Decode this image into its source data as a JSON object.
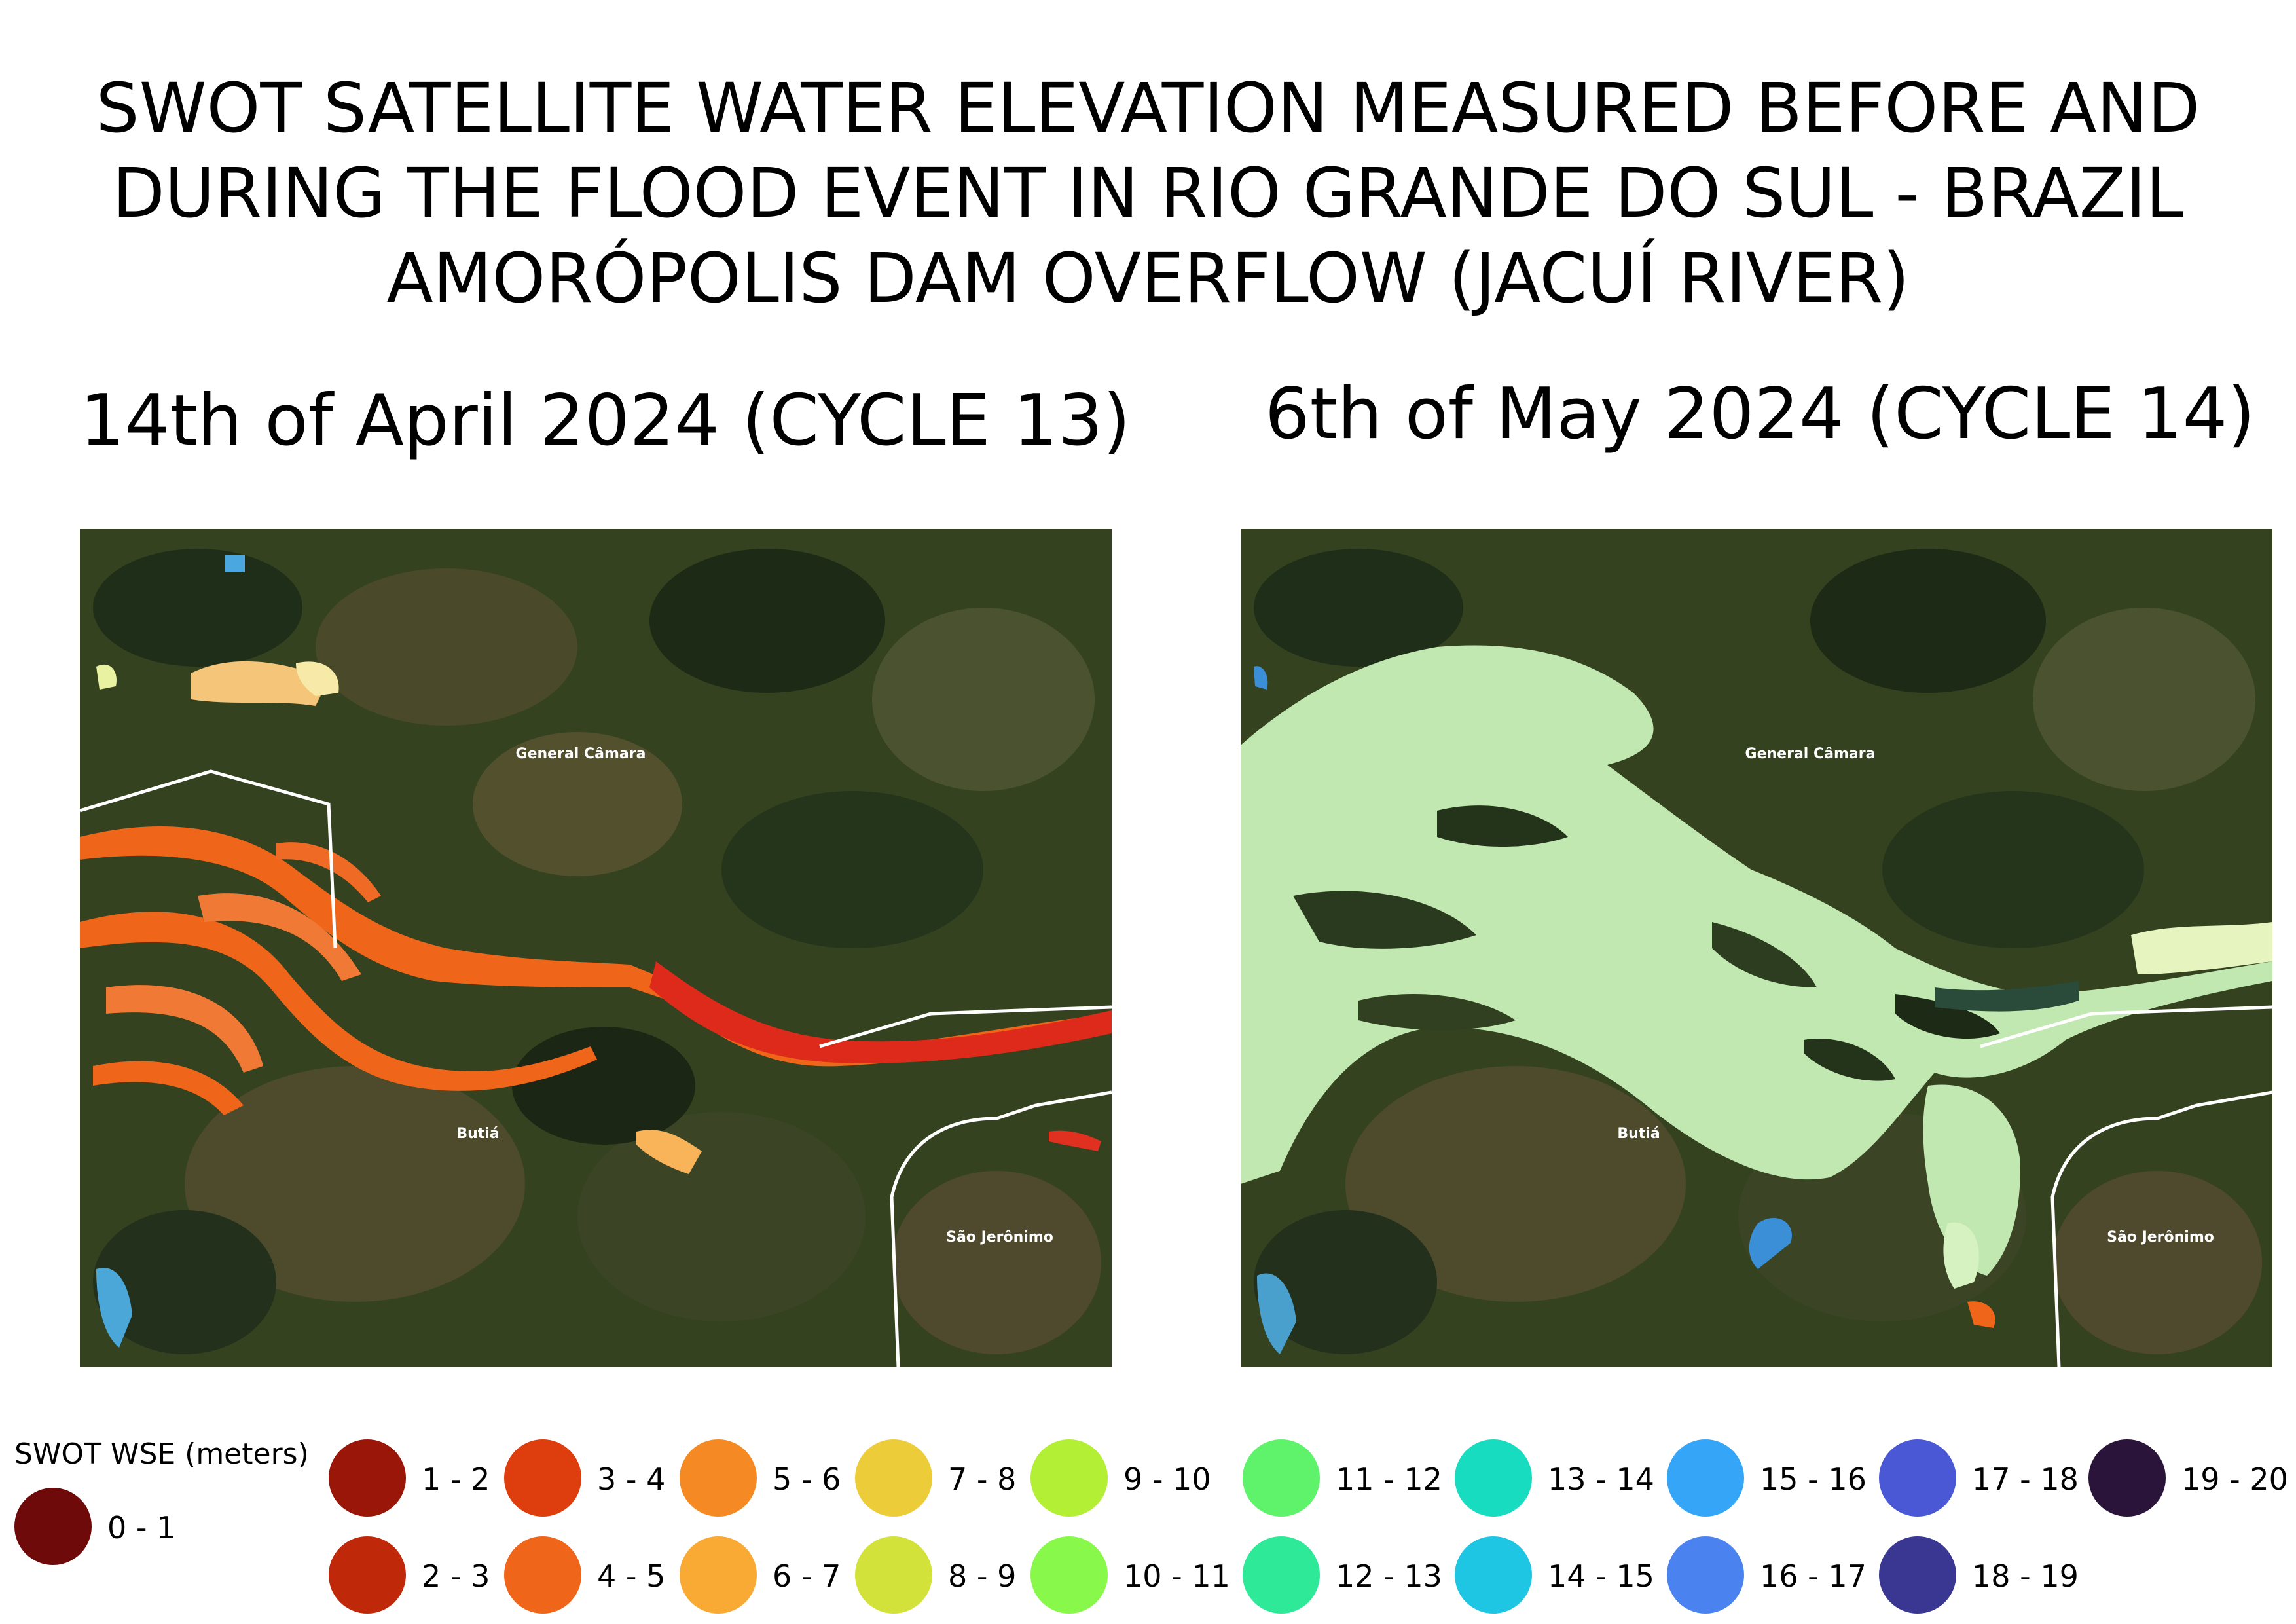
{
  "title_lines": [
    "SWOT SATELLITE WATER ELEVATION MEASURED BEFORE AND",
    "DURING THE FLOOD EVENT IN RIO GRANDE DO SUL - BRAZIL",
    "AMORÓPOLIS DAM OVERFLOW (JACUÍ RIVER)"
  ],
  "panels": {
    "left": {
      "subtitle": "14th of April 2024 (CYCLE 13)",
      "places": {
        "general_camara": "General Câmara",
        "butia": "Butiá",
        "sao_jeronimo": "São Jerônimo"
      },
      "dominant_classes": [
        "4 - 5",
        "3 - 4",
        "6 - 7"
      ]
    },
    "right": {
      "subtitle": "6th of May 2024 (CYCLE 14)",
      "places": {
        "general_camara": "General Câmara",
        "butia": "Butiá",
        "sao_jeronimo": "São Jerônimo"
      },
      "dominant_classes": [
        "10 - 11"
      ]
    }
  },
  "legend": {
    "title": "SWOT WSE (meters)",
    "items": [
      {
        "label": "0 - 1",
        "color": "#6e0a0a"
      },
      {
        "label": "1 - 2",
        "color": "#9a1608"
      },
      {
        "label": "2 - 3",
        "color": "#c0280a"
      },
      {
        "label": "3 - 4",
        "color": "#de3d0e"
      },
      {
        "label": "4 - 5",
        "color": "#ef6519"
      },
      {
        "label": "5 - 6",
        "color": "#f58a24"
      },
      {
        "label": "6 - 7",
        "color": "#f9aa35"
      },
      {
        "label": "7 - 8",
        "color": "#edcc3a"
      },
      {
        "label": "8 - 9",
        "color": "#d3e23a"
      },
      {
        "label": "9 - 10",
        "color": "#b2ef35"
      },
      {
        "label": "10 - 11",
        "color": "#88f94a"
      },
      {
        "label": "11 - 12",
        "color": "#5ef36a"
      },
      {
        "label": "12 - 13",
        "color": "#2ee998"
      },
      {
        "label": "13 - 14",
        "color": "#17dcc0"
      },
      {
        "label": "14 - 15",
        "color": "#1ec6e4"
      },
      {
        "label": "15 - 16",
        "color": "#35a6f7"
      },
      {
        "label": "16 - 17",
        "color": "#4a82f0"
      },
      {
        "label": "17 - 18",
        "color": "#4a58d6"
      },
      {
        "label": "18 - 19",
        "color": "#3a3792"
      },
      {
        "label": "19 - 20",
        "color": "#2a143a"
      }
    ]
  }
}
